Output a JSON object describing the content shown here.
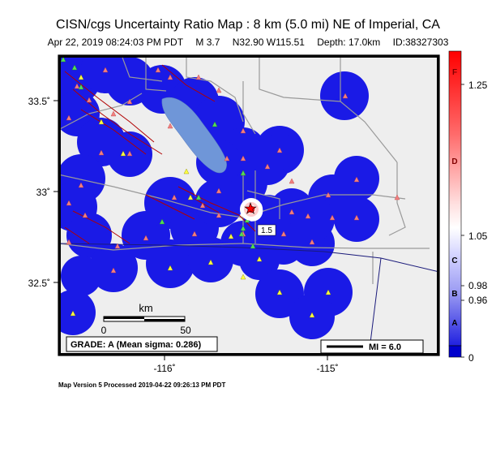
{
  "header": {
    "title": "CISN/cgs Uncertainty Ratio Map : 8 km (5.0 mi) NE of Imperial, CA",
    "datetime": "Apr 22, 2019 08:24:03 PM PDT",
    "magnitude": "M 3.7",
    "location": "N32.90 W115.51",
    "depth": "Depth: 17.0km",
    "event_id": "ID:38327303"
  },
  "axes": {
    "y_ticks": [
      "33.5˚",
      "33˚",
      "32.5˚"
    ],
    "x_ticks": [
      "-116˚",
      "-115˚"
    ]
  },
  "scale_bar": {
    "unit": "km",
    "start": "0",
    "end": "50"
  },
  "grade_label": "GRADE: A (Mean sigma: 0.286)",
  "mi_legend": "MI = 6.0",
  "contour_label": "1.5",
  "colorbar": {
    "letters": [
      "F",
      "D",
      "C",
      "B",
      "A"
    ],
    "values": [
      "1.25",
      "1.05",
      "0.98",
      "0.96",
      "0"
    ],
    "colors": {
      "top": "#ff0000",
      "mid": "#ffffff",
      "bottom": "#0000ff"
    }
  },
  "footer": "Map Version 5 Processed 2019-04-22 09:26:13 PM PDT",
  "map_colors": {
    "background": "#eeeeee",
    "coverage": "#1a1ae6",
    "lake": "#6f96d8",
    "faults": "#b00000",
    "roads": "#999999",
    "border": "#1a1a7a"
  }
}
